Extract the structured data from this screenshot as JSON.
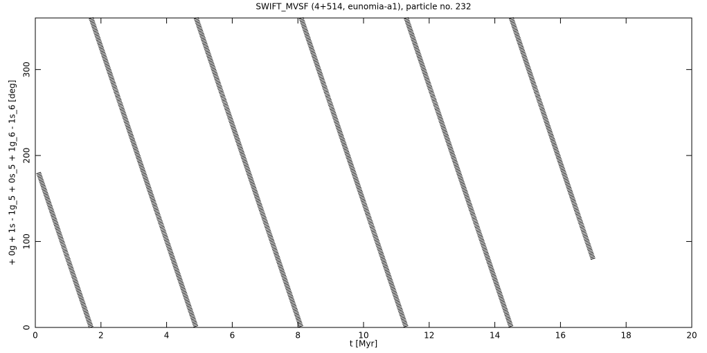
{
  "chart_data": {
    "type": "line",
    "title": "SWIFT_MVSF (4+514, eunomia-a1), particle no. 232",
    "x_label": "t [Myr]",
    "y_label": "+ 0g + 1s - 1g_5 + 0s_5 + 1g_6 - 1s_6 [deg]",
    "x": [
      0.1,
      0.5,
      1.0,
      1.5,
      1.7,
      1.7,
      1.7,
      2,
      3,
      4,
      4.9,
      4.9,
      4.9,
      6,
      7,
      8.1,
      8.1,
      8.1,
      9,
      10,
      11.3,
      11.3,
      11.3,
      12,
      13,
      14.5,
      14.5,
      14.5,
      15,
      16,
      17
    ],
    "values": [
      180,
      135,
      78.75,
      22.5,
      0,
      null,
      360,
      326.25,
      213.75,
      101.25,
      0,
      null,
      360,
      236.25,
      123.75,
      0,
      null,
      360,
      258.75,
      146.25,
      0,
      null,
      360,
      281.25,
      168.75,
      0,
      null,
      360,
      303.75,
      191.25,
      78.75
    ],
    "color": "#000000",
    "xlim": [
      0,
      20
    ],
    "xticks": [
      0,
      2,
      4,
      6,
      8,
      10,
      12,
      14,
      16,
      18,
      20
    ],
    "ylim": [
      0,
      360
    ],
    "yticks": [
      0,
      100,
      200,
      300
    ],
    "grid": false
  }
}
